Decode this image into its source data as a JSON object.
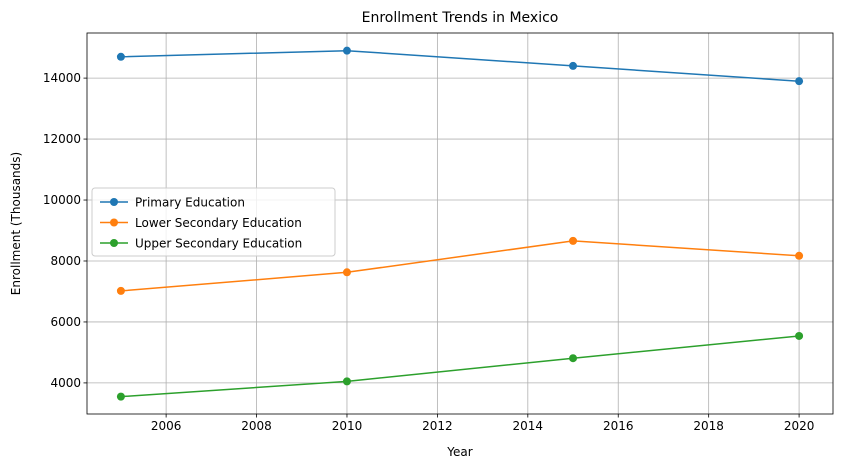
{
  "chart_data": {
    "type": "line",
    "title": "Enrollment Trends in Mexico",
    "xlabel": "Year",
    "ylabel": "Enrollment (Thousands)",
    "x": [
      2005,
      2010,
      2015,
      2020
    ],
    "xlim": [
      2004.25,
      2020.75
    ],
    "ylim": [
      2980,
      15480
    ],
    "xticks": [
      2006,
      2008,
      2010,
      2012,
      2014,
      2016,
      2018,
      2020
    ],
    "yticks": [
      4000,
      6000,
      8000,
      10000,
      12000,
      14000
    ],
    "grid": true,
    "legend_position": "center-left",
    "series": [
      {
        "name": "Primary Education",
        "color": "#1f77b4",
        "values": [
          14700,
          14900,
          14400,
          13900
        ]
      },
      {
        "name": "Lower Secondary Education",
        "color": "#ff7f0e",
        "values": [
          7020,
          7630,
          8660,
          8170
        ]
      },
      {
        "name": "Upper Secondary Education",
        "color": "#2ca02c",
        "values": [
          3550,
          4050,
          4810,
          5540
        ]
      }
    ]
  }
}
